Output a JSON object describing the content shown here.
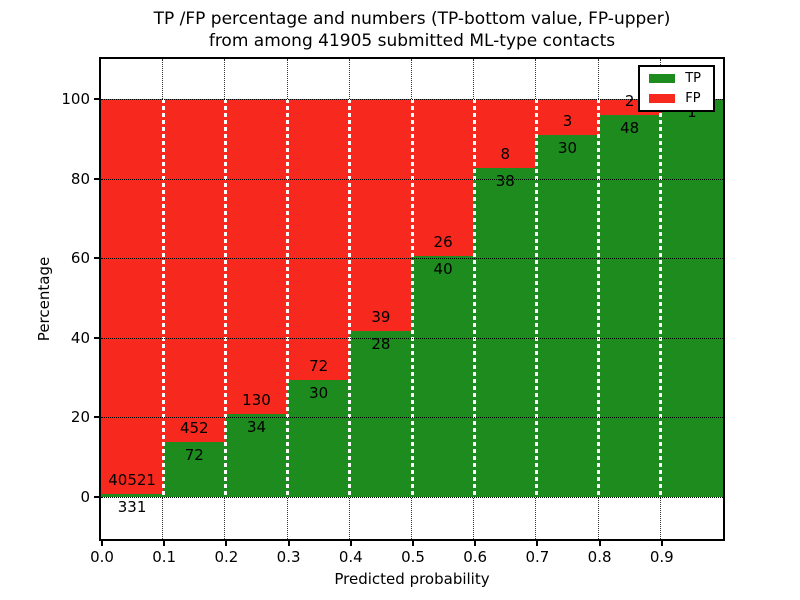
{
  "title": {
    "line1": "TP /FP percentage and numbers (TP-bottom value, FP-upper)",
    "line2": "from among 41905 submitted ML-type contacts"
  },
  "axes": {
    "xlabel": "Predicted probability",
    "ylabel": "Percentage",
    "x_tick_labels": [
      "0.0",
      "0.1",
      "0.2",
      "0.3",
      "0.4",
      "0.5",
      "0.6",
      "0.7",
      "0.8",
      "0.9"
    ],
    "y_tick_labels": [
      "0",
      "20",
      "40",
      "60",
      "80",
      "100"
    ],
    "y_tick_values": [
      0,
      20,
      40,
      60,
      80,
      100
    ],
    "xlim": [
      0.0,
      1.0
    ],
    "ylim": [
      -10.6,
      110.6
    ],
    "grid": "dotted"
  },
  "legend": {
    "entries": [
      {
        "label": "TP",
        "color_key": "tp"
      },
      {
        "label": "FP",
        "color_key": "fp"
      }
    ],
    "position": "upper right"
  },
  "colors": {
    "tp": "#1d8b1d",
    "fp": "#f7281e",
    "text": "#000000",
    "background": "#ffffff"
  },
  "chart_data": {
    "type": "bar",
    "stacked": true,
    "normalized_to": 100,
    "title": "TP /FP percentage and numbers (TP-bottom value, FP-upper) from among 41905 submitted ML-type contacts",
    "xlabel": "Predicted probability",
    "ylabel": "Percentage",
    "bin_edges": [
      0.0,
      0.1,
      0.2,
      0.3,
      0.4,
      0.5,
      0.6,
      0.7,
      0.8,
      0.9,
      1.0
    ],
    "series": [
      {
        "name": "TP",
        "values": [
          331,
          72,
          34,
          30,
          28,
          40,
          38,
          30,
          48,
          1
        ]
      },
      {
        "name": "FP",
        "values": [
          40521,
          452,
          130,
          72,
          39,
          26,
          8,
          3,
          2,
          0
        ]
      }
    ],
    "tp_percent": [
      0.81,
      13.74,
      20.73,
      29.41,
      41.79,
      60.61,
      82.61,
      90.91,
      96.0,
      100.0
    ],
    "tp_labels": [
      "331",
      "72",
      "34",
      "30",
      "28",
      "40",
      "38",
      "30",
      "48",
      "1"
    ],
    "fp_labels": [
      "40521",
      "452",
      "130",
      "72",
      "39",
      "26",
      "8",
      "3",
      "2",
      ""
    ],
    "legend_position": "upper right",
    "ylim": [
      -10.6,
      110.6
    ]
  }
}
